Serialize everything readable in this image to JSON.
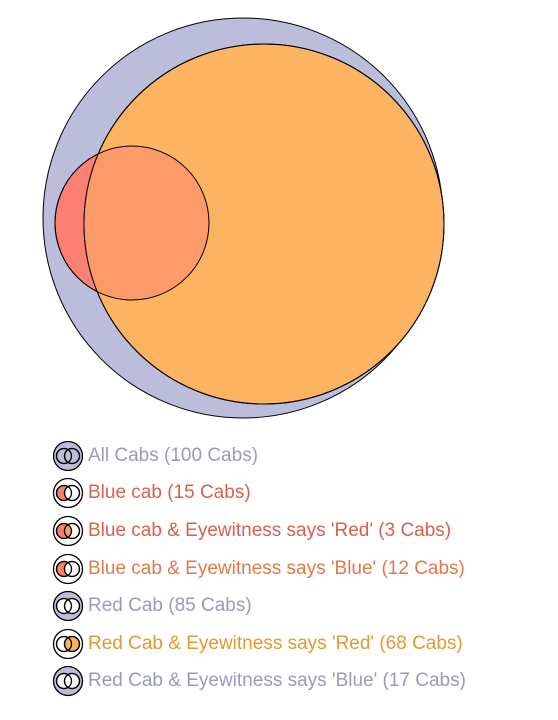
{
  "colors": {
    "all_cabs_fill": "#bcbcdb",
    "blue_cab_fill": "#fb8072",
    "red_red_fill": "#fdb462",
    "overlap_fill": "#fd9a6a",
    "outline": "#000000"
  },
  "legend": [
    {
      "label": "All Cabs (100 Cabs)",
      "text_color": "#9a9abf",
      "swatch": "all"
    },
    {
      "label": "Blue cab (15 Cabs)",
      "text_color": "#d9604f",
      "swatch": "blue"
    },
    {
      "label": "Blue cab & Eyewitness says 'Red' (3 Cabs)",
      "text_color": "#d9604f",
      "swatch": "blue-red"
    },
    {
      "label": "Blue cab & Eyewitness says 'Blue' (12 Cabs)",
      "text_color": "#e07a48",
      "swatch": "blue-blue"
    },
    {
      "label": "Red Cab (85 Cabs)",
      "text_color": "#9a9abf",
      "swatch": "red"
    },
    {
      "label": "Red Cab & Eyewitness says 'Red' (68 Cabs)",
      "text_color": "#e09a30",
      "swatch": "red-red"
    },
    {
      "label": "Red Cab & Eyewitness says 'Blue' (17 Cabs)",
      "text_color": "#9a9abf",
      "swatch": "red-blue"
    }
  ]
}
